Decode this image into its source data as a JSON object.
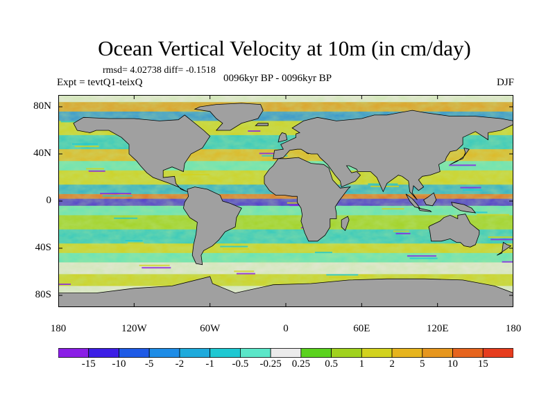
{
  "title": "Ocean Vertical Velocity at 10m (in cm/day)",
  "stats": "rmsd= 4.02738 diff= -0.1518",
  "experiment": "Expt = tevtQ1-teixQ",
  "period": "0096kyr BP - 0096kyr BP",
  "season": "DJF",
  "map": {
    "lon_range": [
      -180,
      180
    ],
    "lat_range": [
      -90,
      90
    ],
    "land_color": "#a0a0a0",
    "lat_labels": [
      {
        "text": "80N",
        "lat": 80
      },
      {
        "text": "40N",
        "lat": 40
      },
      {
        "text": "0",
        "lat": 0
      },
      {
        "text": "40S",
        "lat": -40
      },
      {
        "text": "80S",
        "lat": -80
      }
    ],
    "lon_labels": [
      {
        "text": "180",
        "lon": -180
      },
      {
        "text": "120W",
        "lon": -120
      },
      {
        "text": "60W",
        "lon": -60
      },
      {
        "text": "0",
        "lon": 0
      },
      {
        "text": "60E",
        "lon": 60
      },
      {
        "text": "120E",
        "lon": 120
      },
      {
        "text": "180",
        "lon": 180
      }
    ]
  },
  "colorbar": {
    "colors": [
      "#8a1ee6",
      "#3c1ee6",
      "#1e5ae6",
      "#1e8ce6",
      "#1eaadc",
      "#1ec8d2",
      "#5ae6c8",
      "#ebebeb",
      "#5ad21e",
      "#a0d21e",
      "#d2d21e",
      "#e6b41e",
      "#e6961e",
      "#e6641e",
      "#e63c1e"
    ],
    "labels": [
      "-15",
      "-10",
      "-5",
      "-2",
      "-1",
      "-0.5",
      "-0.25",
      "0.25",
      "0.5",
      "1",
      "2",
      "5",
      "10",
      "15"
    ]
  }
}
